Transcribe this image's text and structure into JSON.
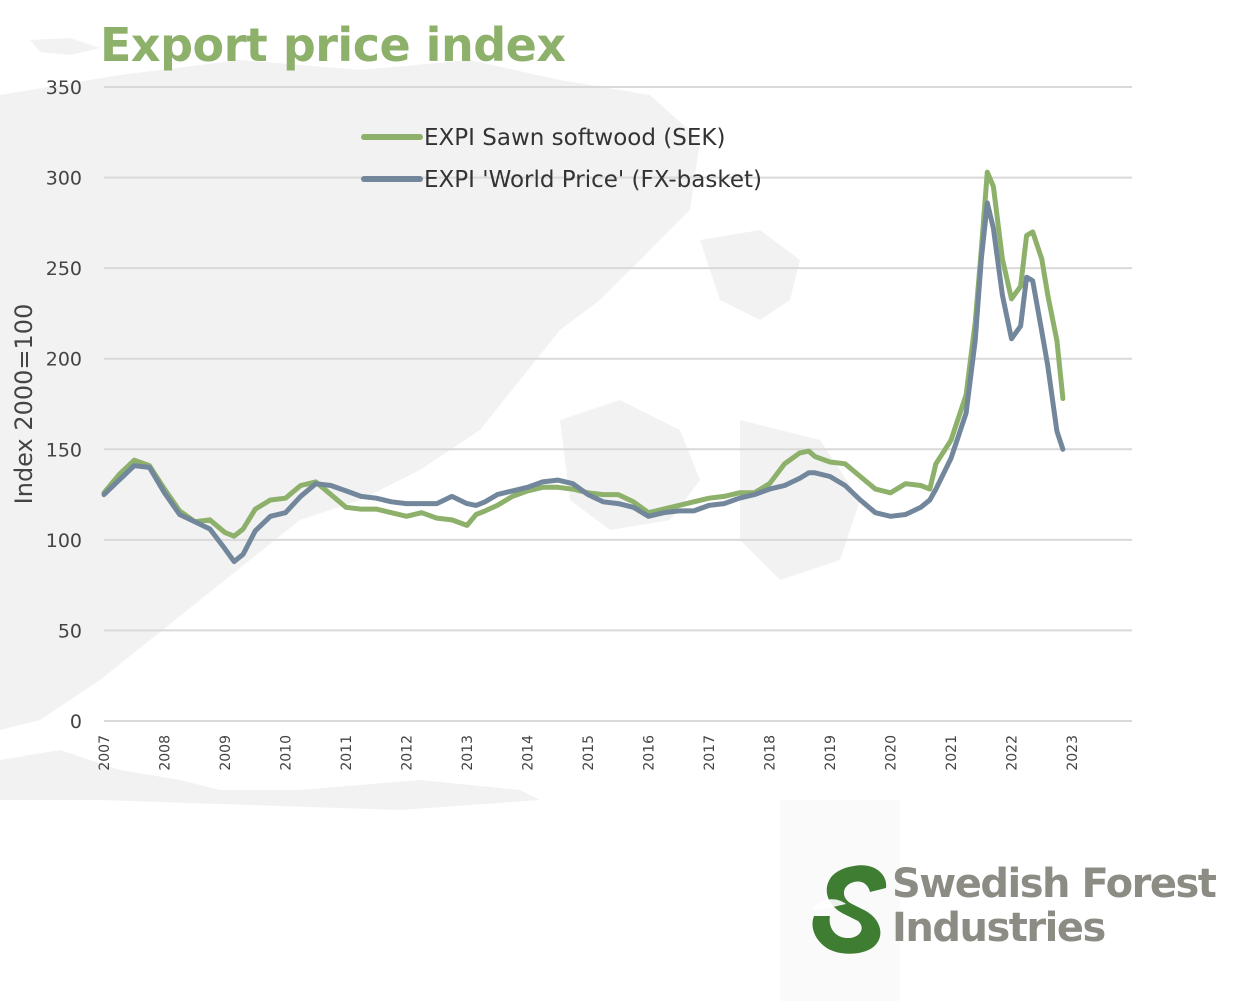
{
  "colors": {
    "title": "#8db06a",
    "sawn": "#8db06a",
    "world": "#72879b",
    "grid": "#d9d9d9",
    "logo_green": "#3f7d33",
    "logo_gray": "#8c8c84"
  },
  "logo": {
    "line1": "Swedish Forest",
    "line2": "Industries",
    "icon": "swedish-forest-s-leaf-icon"
  },
  "chart_data": {
    "type": "line",
    "title": "Export price index",
    "xlabel": "",
    "ylabel": "Index 2000=100",
    "ylim": [
      0,
      350
    ],
    "yticks": [
      0,
      50,
      100,
      150,
      200,
      250,
      300,
      350
    ],
    "xlim": [
      2007,
      2024
    ],
    "xticks": [
      "2007",
      "2008",
      "2009",
      "2010",
      "2011",
      "2012",
      "2013",
      "2014",
      "2015",
      "2016",
      "2017",
      "2018",
      "2019",
      "2020",
      "2021",
      "2022",
      "2023"
    ],
    "grid": true,
    "legend_position": "top-left",
    "series": [
      {
        "name": "EXPI Sawn softwood (SEK)",
        "color": "#8db06a",
        "x": [
          2007.0,
          2007.25,
          2007.5,
          2007.75,
          2008.0,
          2008.25,
          2008.5,
          2008.75,
          2009.0,
          2009.15,
          2009.3,
          2009.5,
          2009.75,
          2010.0,
          2010.25,
          2010.5,
          2010.75,
          2011.0,
          2011.25,
          2011.5,
          2011.75,
          2012.0,
          2012.25,
          2012.5,
          2012.75,
          2013.0,
          2013.15,
          2013.3,
          2013.5,
          2013.75,
          2014.0,
          2014.25,
          2014.5,
          2014.75,
          2015.0,
          2015.25,
          2015.5,
          2015.75,
          2016.0,
          2016.25,
          2016.5,
          2016.75,
          2017.0,
          2017.25,
          2017.5,
          2017.75,
          2018.0,
          2018.25,
          2018.5,
          2018.65,
          2018.75,
          2019.0,
          2019.25,
          2019.5,
          2019.75,
          2020.0,
          2020.25,
          2020.5,
          2020.65,
          2020.75,
          2021.0,
          2021.25,
          2021.4,
          2021.5,
          2021.6,
          2021.7,
          2021.85,
          2022.0,
          2022.15,
          2022.25,
          2022.35,
          2022.5,
          2022.6,
          2022.75,
          2022.85
        ],
        "values": [
          126,
          136,
          144,
          141,
          128,
          116,
          110,
          111,
          104,
          102,
          106,
          117,
          122,
          123,
          130,
          132,
          125,
          118,
          117,
          117,
          115,
          113,
          115,
          112,
          111,
          108,
          114,
          116,
          119,
          124,
          127,
          129,
          129,
          128,
          126,
          125,
          125,
          121,
          115,
          117,
          119,
          121,
          123,
          124,
          126,
          126,
          131,
          142,
          148,
          149,
          146,
          143,
          142,
          135,
          128,
          126,
          131,
          130,
          128,
          142,
          155,
          180,
          220,
          260,
          303,
          295,
          255,
          233,
          240,
          268,
          270,
          255,
          235,
          210,
          178
        ]
      },
      {
        "name": "EXPI 'World Price' (FX-basket)",
        "color": "#72879b",
        "x": [
          2007.0,
          2007.25,
          2007.5,
          2007.75,
          2008.0,
          2008.25,
          2008.5,
          2008.75,
          2009.0,
          2009.15,
          2009.3,
          2009.5,
          2009.75,
          2010.0,
          2010.25,
          2010.5,
          2010.75,
          2011.0,
          2011.25,
          2011.5,
          2011.75,
          2012.0,
          2012.25,
          2012.5,
          2012.75,
          2013.0,
          2013.15,
          2013.3,
          2013.5,
          2013.75,
          2014.0,
          2014.25,
          2014.5,
          2014.75,
          2015.0,
          2015.25,
          2015.5,
          2015.75,
          2016.0,
          2016.25,
          2016.5,
          2016.75,
          2017.0,
          2017.25,
          2017.5,
          2017.75,
          2018.0,
          2018.25,
          2018.5,
          2018.65,
          2018.75,
          2019.0,
          2019.25,
          2019.5,
          2019.75,
          2020.0,
          2020.25,
          2020.5,
          2020.65,
          2020.75,
          2021.0,
          2021.25,
          2021.4,
          2021.5,
          2021.6,
          2021.7,
          2021.85,
          2022.0,
          2022.15,
          2022.25,
          2022.35,
          2022.5,
          2022.6,
          2022.75,
          2022.85
        ],
        "values": [
          125,
          133,
          141,
          140,
          126,
          114,
          110,
          106,
          95,
          88,
          92,
          105,
          113,
          115,
          124,
          131,
          130,
          127,
          124,
          123,
          121,
          120,
          120,
          120,
          124,
          120,
          119,
          121,
          125,
          127,
          129,
          132,
          133,
          131,
          125,
          121,
          120,
          118,
          113,
          115,
          116,
          116,
          119,
          120,
          123,
          125,
          128,
          130,
          134,
          137,
          137,
          135,
          130,
          122,
          115,
          113,
          114,
          118,
          122,
          128,
          145,
          170,
          210,
          255,
          286,
          272,
          235,
          211,
          218,
          245,
          243,
          215,
          196,
          160,
          150
        ]
      }
    ]
  }
}
